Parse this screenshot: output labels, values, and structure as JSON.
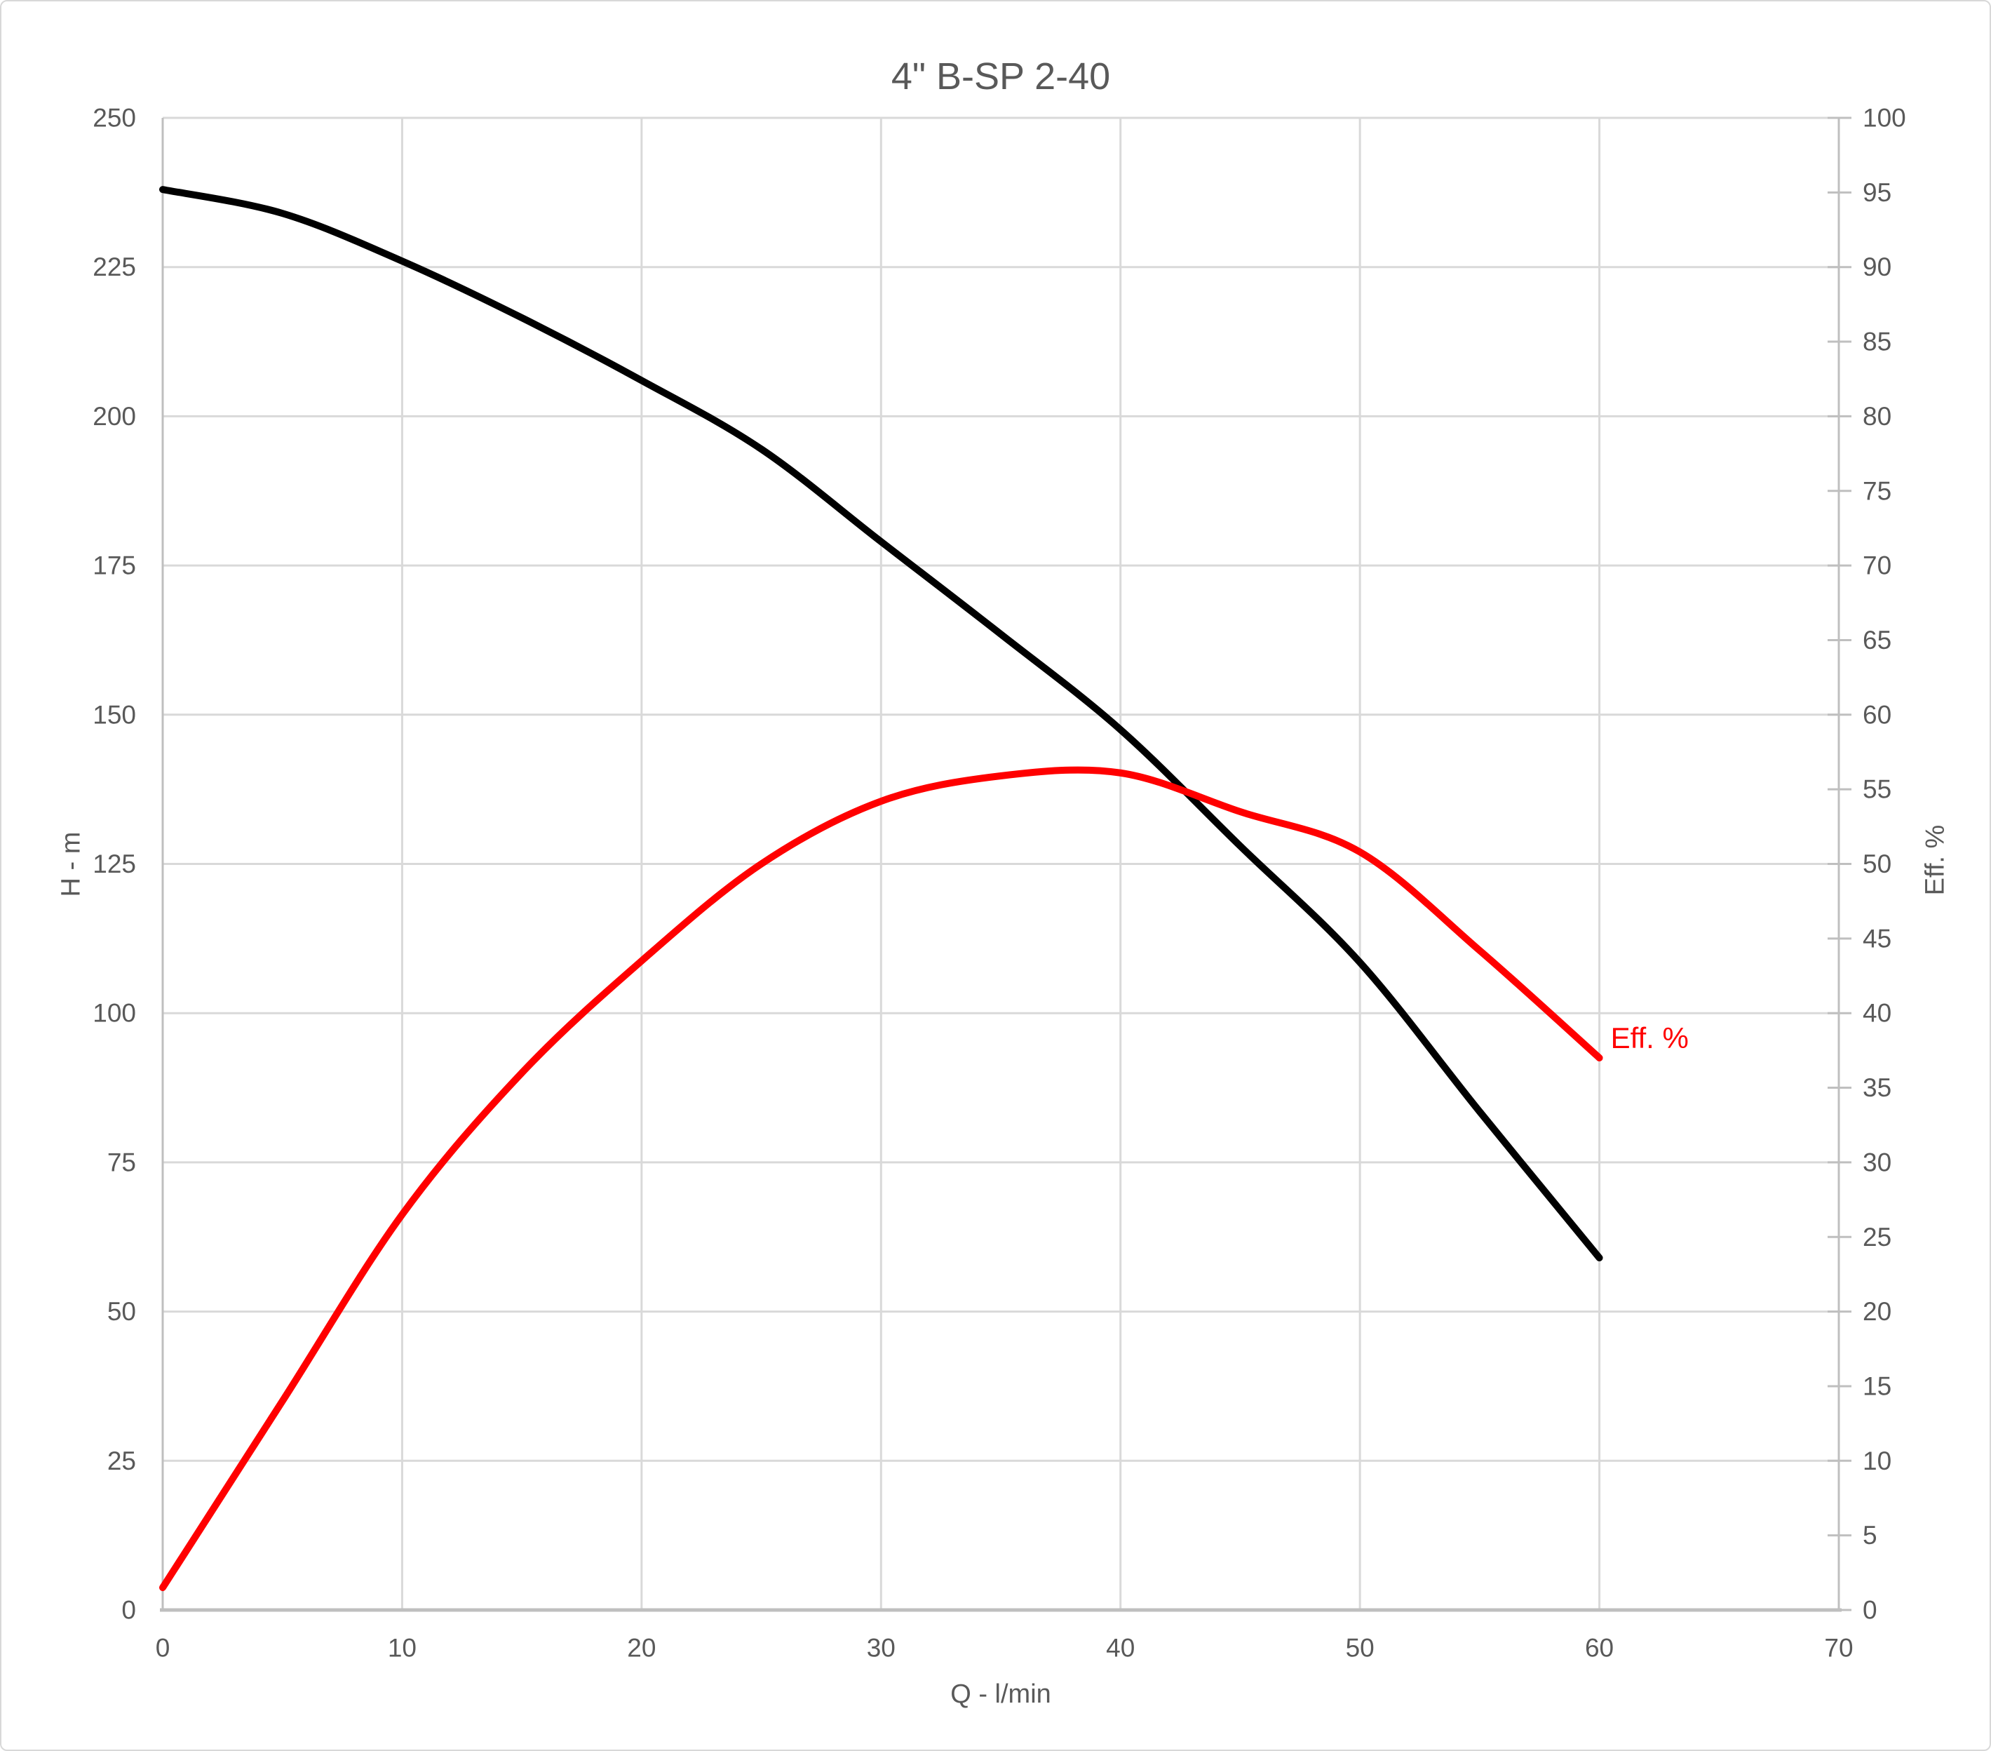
{
  "chart_data": {
    "type": "line",
    "title": "4\" B-SP 2-40",
    "xlabel": "Q - l/min",
    "ylabel_left": "H - m",
    "ylabel_right": "Eff. %",
    "grid": true,
    "legend": "none",
    "x_axis": {
      "min": 0,
      "max": 70,
      "ticks": [
        0,
        10,
        20,
        30,
        40,
        50,
        60,
        70
      ]
    },
    "y_left": {
      "min": 0,
      "max": 250,
      "ticks": [
        0,
        25,
        50,
        75,
        100,
        125,
        150,
        175,
        200,
        225,
        250
      ]
    },
    "y_right": {
      "min": 0,
      "max": 100,
      "ticks": [
        0,
        5,
        10,
        15,
        20,
        25,
        30,
        35,
        40,
        45,
        50,
        55,
        60,
        65,
        70,
        75,
        80,
        85,
        90,
        95,
        100
      ]
    },
    "x": [
      0,
      5,
      10,
      15,
      20,
      25,
      30,
      35,
      40,
      45,
      50,
      55,
      60
    ],
    "series": [
      {
        "name": "H - m (head curve)",
        "axis": "left",
        "color": "#000000",
        "values": [
          238,
          234,
          226,
          216.5,
          206,
          194.5,
          179,
          163.5,
          147.5,
          128,
          108.5,
          83.5,
          59
        ]
      },
      {
        "name": "Eff. % (efficiency curve)",
        "axis": "right",
        "color": "#ff0000",
        "values": [
          1.5,
          14,
          26.5,
          36,
          43.5,
          50,
          54.2,
          55.9,
          56.1,
          53.5,
          50.8,
          44.2,
          37
        ]
      }
    ],
    "annotation": {
      "text": "Eff. %",
      "x": 60,
      "y": 37,
      "color": "#ff0000"
    },
    "colors": {
      "text": "#595959",
      "gridline": "#d9d9d9",
      "axis_line": "#bfbfbf",
      "head_curve": "#000000",
      "efficiency_curve": "#ff0000"
    }
  }
}
